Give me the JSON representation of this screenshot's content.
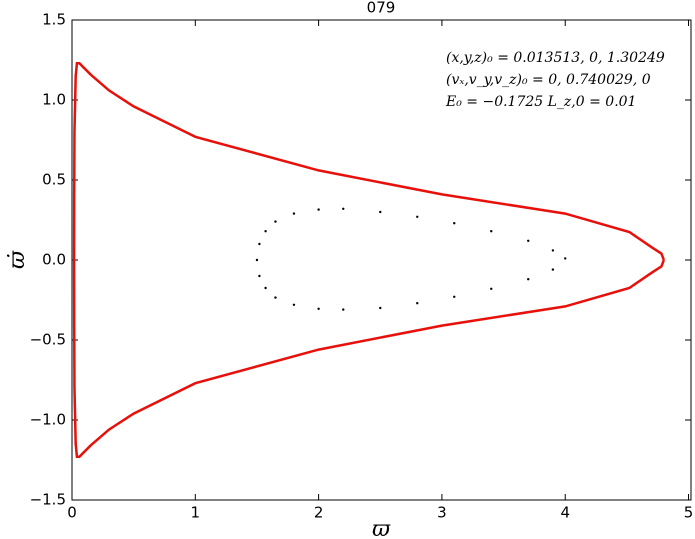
{
  "chart_data": {
    "type": "line",
    "title": "079",
    "x_label": "ϖ",
    "y_label": "ϖ̇",
    "annotations": [
      "(x,y,z)₀ = 0.013513, 0, 1.30249",
      "(vₓ,v_y,v_z)₀ = 0, 0.740029, 0",
      "E₀ = −0.1725   L_z,0 = 0.01"
    ],
    "xlim": [
      0,
      5.02
    ],
    "ylim": [
      -1.5,
      1.5
    ],
    "xticks": [
      0,
      1,
      2,
      3,
      4,
      5
    ],
    "yticks": [
      {
        "value": -1.5,
        "label": "−1.5"
      },
      {
        "value": -1.0,
        "label": "−1.0"
      },
      {
        "value": -0.5,
        "label": "−0.5"
      },
      {
        "value": 0,
        "label": "0.0"
      },
      0.5,
      {
        "value": 1.0,
        "label": "1.0"
      },
      1.5
    ],
    "series": [
      {
        "type": "line",
        "color": "#e8100a",
        "x": [
          4.8,
          4.78,
          4.7,
          4.52,
          4.0,
          3.0,
          2.0,
          1.0,
          0.5,
          0.3,
          0.15,
          0.06,
          0.04,
          0.03,
          0.02,
          0.018,
          0.017,
          0.018,
          0.02,
          0.03,
          0.04,
          0.06,
          0.15,
          0.3,
          0.5,
          1.0,
          2.0,
          3.0,
          4.0,
          4.52,
          4.7,
          4.78,
          4.8
        ],
        "y": [
          0,
          0.04,
          0.08,
          0.175,
          0.29,
          0.41,
          0.56,
          0.77,
          0.96,
          1.06,
          1.16,
          1.23,
          1.23,
          1.15,
          0.8,
          0.4,
          0,
          -0.4,
          -0.8,
          -1.15,
          -1.23,
          -1.23,
          -1.16,
          -1.06,
          -0.96,
          -0.77,
          -0.56,
          -0.41,
          -0.29,
          -0.175,
          -0.08,
          -0.04,
          0
        ]
      },
      {
        "type": "scatter",
        "color": "#000000",
        "x": [
          1.5,
          1.52,
          1.57,
          1.65,
          1.8,
          2.0,
          2.2,
          2.5,
          2.8,
          3.1,
          3.4,
          3.7,
          3.9,
          4.0,
          3.9,
          3.7,
          3.4,
          3.1,
          2.8,
          2.5,
          2.2,
          2.0,
          1.8,
          1.65,
          1.57,
          1.52
        ],
        "y": [
          0,
          0.1,
          0.18,
          0.24,
          0.29,
          0.315,
          0.32,
          0.3,
          0.27,
          0.23,
          0.18,
          0.12,
          0.06,
          0.01,
          -0.06,
          -0.12,
          -0.18,
          -0.23,
          -0.27,
          -0.3,
          -0.31,
          -0.305,
          -0.28,
          -0.235,
          -0.175,
          -0.1
        ]
      }
    ]
  }
}
